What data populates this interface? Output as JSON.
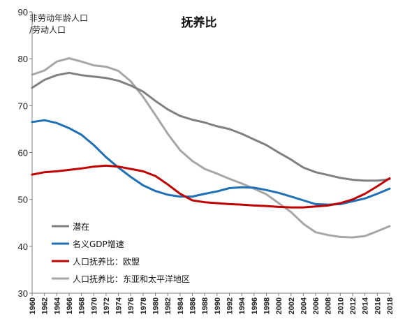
{
  "chart_data": {
    "type": "line",
    "title": "抚养比",
    "ylabel_lines": [
      "非劳动年龄人口",
      "/劳动人口"
    ],
    "ylim": [
      30,
      90
    ],
    "yticks": [
      30,
      40,
      50,
      60,
      70,
      80,
      90
    ],
    "xlim": [
      1960,
      2018
    ],
    "xticks": [
      1960,
      1962,
      1964,
      1966,
      1968,
      1970,
      1972,
      1974,
      1976,
      1978,
      1980,
      1982,
      1984,
      1986,
      1988,
      1990,
      1992,
      1994,
      1996,
      1998,
      2000,
      2002,
      2004,
      2006,
      2008,
      2010,
      2012,
      2014,
      2016,
      2018
    ],
    "legend_position": "bottom-left",
    "grid": false,
    "x": [
      1960,
      1962,
      1964,
      1966,
      1968,
      1970,
      1972,
      1974,
      1976,
      1978,
      1980,
      1982,
      1984,
      1986,
      1988,
      1990,
      1992,
      1994,
      1996,
      1998,
      2000,
      2002,
      2004,
      2006,
      2008,
      2010,
      2012,
      2014,
      2016,
      2018
    ],
    "series": [
      {
        "name": "潜在",
        "color": "#808080",
        "values": [
          73.8,
          75.5,
          76.5,
          77.0,
          76.5,
          76.2,
          75.9,
          75.3,
          74.3,
          73.0,
          71.0,
          69.2,
          67.8,
          67.0,
          66.4,
          65.6,
          65.0,
          64.0,
          62.8,
          61.6,
          60.0,
          58.5,
          56.8,
          55.8,
          55.2,
          54.6,
          54.2,
          54.0,
          54.0,
          54.3
        ]
      },
      {
        "name": "名义GDP增速",
        "color": "#1f6fb5",
        "values": [
          66.5,
          66.9,
          66.3,
          65.2,
          63.8,
          61.6,
          59.0,
          56.8,
          54.8,
          53.0,
          51.8,
          51.0,
          50.6,
          50.6,
          51.2,
          51.7,
          52.4,
          52.6,
          52.5,
          52.0,
          51.4,
          50.6,
          49.8,
          49.0,
          48.9,
          49.0,
          49.6,
          50.2,
          51.2,
          52.3
        ]
      },
      {
        "name": "人口抚养比：欧盟",
        "color": "#c00000",
        "values": [
          55.3,
          55.8,
          56.0,
          56.3,
          56.6,
          57.0,
          57.2,
          57.0,
          56.5,
          56.0,
          55.0,
          53.2,
          51.2,
          49.8,
          49.4,
          49.2,
          49.0,
          48.9,
          48.7,
          48.6,
          48.4,
          48.3,
          48.3,
          48.5,
          48.7,
          49.2,
          50.0,
          51.2,
          52.8,
          54.5
        ]
      },
      {
        "name": "人口抚养比：东亚和太平洋地区",
        "color": "#a6a6a6",
        "values": [
          76.6,
          77.5,
          79.4,
          80.1,
          79.4,
          78.6,
          78.3,
          77.4,
          75.2,
          71.9,
          68.0,
          64.0,
          60.5,
          58.2,
          56.5,
          55.5,
          54.4,
          53.4,
          52.3,
          51.1,
          49.2,
          47.3,
          44.8,
          43.0,
          42.4,
          42.0,
          41.9,
          42.2,
          43.2,
          44.3
        ]
      }
    ]
  }
}
